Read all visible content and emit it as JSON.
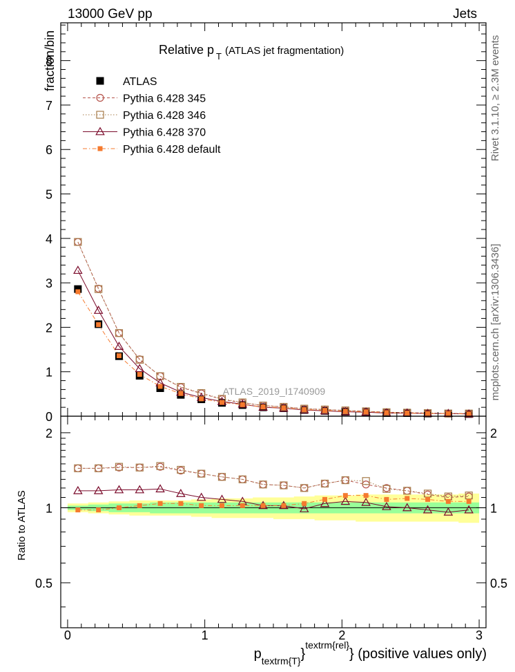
{
  "header": {
    "left": "13000 GeV pp",
    "right": "Jets"
  },
  "side_labels": {
    "rivet": "Rivet 3.1.10, ≥ 2.3M events",
    "mcplots": "mcplots.cern.ch [arXiv:1306.3436]"
  },
  "chart_data": {
    "type": "scatter",
    "title_main": "Relative p",
    "title_sub": "T",
    "title_rest": "(ATLAS jet fragmentation)",
    "watermark": "ATLAS_2019_I1740909",
    "ylabel": "fraction/bin",
    "ratio_ylabel": "Ratio to ATLAS",
    "xlabel_main": "p",
    "xlabel_sub": "textrm{T}",
    "xlabel_sup": "textrm{rel}",
    "xlabel_tail": "} (positive values only)",
    "xlim": [
      -0.05,
      3.05
    ],
    "ylim": [
      0,
      8.85
    ],
    "ratio_ylim": [
      0.33,
      2.33
    ],
    "x_ticks": [
      "0",
      "1",
      "2",
      "3"
    ],
    "y_ticks": [
      "0",
      "1",
      "2",
      "3",
      "4",
      "5",
      "6",
      "7",
      "8"
    ],
    "ratio_ticks": [
      "0.5",
      "1",
      "2"
    ],
    "x": [
      0.075,
      0.225,
      0.375,
      0.525,
      0.675,
      0.825,
      0.975,
      1.125,
      1.275,
      1.425,
      1.575,
      1.725,
      1.875,
      2.025,
      2.175,
      2.325,
      2.475,
      2.625,
      2.775,
      2.925
    ],
    "legend_position": "top-left",
    "series": [
      {
        "name": "ATLAS",
        "color": "#000000",
        "marker": "filled-square",
        "line": "none",
        "values": [
          2.86,
          2.07,
          1.35,
          0.91,
          0.63,
          0.48,
          0.38,
          0.3,
          0.25,
          0.2,
          0.18,
          0.14,
          0.12,
          0.1,
          0.09,
          0.07,
          0.07,
          0.06,
          0.06,
          0.05
        ]
      },
      {
        "name": "Pythia 6.428 345",
        "color": "#b5524a",
        "marker": "open-circle",
        "line": "dashed",
        "values": [
          3.92,
          2.87,
          1.87,
          1.28,
          0.9,
          0.65,
          0.51,
          0.38,
          0.3,
          0.24,
          0.21,
          0.17,
          0.15,
          0.13,
          0.11,
          0.09,
          0.08,
          0.07,
          0.06,
          0.06
        ],
        "ratio": [
          1.44,
          1.44,
          1.45,
          1.45,
          1.46,
          1.41,
          1.37,
          1.33,
          1.3,
          1.24,
          1.23,
          1.2,
          1.25,
          1.29,
          1.24,
          1.2,
          1.17,
          1.13,
          1.1,
          1.11
        ]
      },
      {
        "name": "Pythia 6.428 346",
        "color": "#a67c4a",
        "marker": "open-square",
        "line": "dotted",
        "values": [
          3.92,
          2.86,
          1.87,
          1.27,
          0.9,
          0.66,
          0.52,
          0.39,
          0.31,
          0.24,
          0.21,
          0.17,
          0.15,
          0.13,
          0.11,
          0.09,
          0.08,
          0.07,
          0.06,
          0.06
        ],
        "ratio": [
          1.44,
          1.44,
          1.46,
          1.45,
          1.47,
          1.42,
          1.37,
          1.33,
          1.3,
          1.24,
          1.23,
          1.2,
          1.25,
          1.29,
          1.28,
          1.19,
          1.17,
          1.14,
          1.11,
          1.12
        ]
      },
      {
        "name": "Pythia 6.428 370",
        "color": "#7a0a2a",
        "marker": "open-triangle",
        "line": "solid",
        "values": [
          3.28,
          2.38,
          1.57,
          1.07,
          0.75,
          0.54,
          0.42,
          0.33,
          0.27,
          0.2,
          0.18,
          0.14,
          0.12,
          0.1,
          0.09,
          0.07,
          0.07,
          0.06,
          0.06,
          0.05
        ],
        "ratio": [
          1.17,
          1.17,
          1.18,
          1.18,
          1.19,
          1.14,
          1.1,
          1.08,
          1.06,
          1.02,
          1.02,
          0.99,
          1.04,
          1.06,
          1.05,
          1.01,
          1.0,
          0.98,
          0.96,
          0.98
        ]
      },
      {
        "name": "Pythia 6.428 default",
        "color": "#f57a2e",
        "marker": "filled-square",
        "line": "dashdot",
        "values": [
          2.8,
          2.06,
          1.36,
          0.94,
          0.67,
          0.51,
          0.39,
          0.31,
          0.26,
          0.21,
          0.19,
          0.15,
          0.13,
          0.11,
          0.1,
          0.08,
          0.07,
          0.06,
          0.06,
          0.05
        ],
        "ratio": [
          0.98,
          0.98,
          1.0,
          1.02,
          1.04,
          1.04,
          1.02,
          1.02,
          1.02,
          1.02,
          1.02,
          1.04,
          1.08,
          1.12,
          1.12,
          1.08,
          1.09,
          1.08,
          1.06,
          1.06
        ]
      }
    ],
    "ratio_band_yellow_lo": [
      0.96,
      0.95,
      0.94,
      0.93,
      0.93,
      0.93,
      0.92,
      0.91,
      0.91,
      0.91,
      0.9,
      0.9,
      0.89,
      0.89,
      0.88,
      0.88,
      0.88,
      0.88,
      0.88,
      0.87
    ],
    "ratio_band_yellow_hi": [
      1.04,
      1.05,
      1.06,
      1.07,
      1.07,
      1.07,
      1.08,
      1.09,
      1.09,
      1.1,
      1.1,
      1.11,
      1.12,
      1.12,
      1.13,
      1.13,
      1.13,
      1.13,
      1.13,
      1.14
    ],
    "ratio_band_green_lo": [
      0.98,
      0.97,
      0.96,
      0.96,
      0.95,
      0.95,
      0.95,
      0.95,
      0.95,
      0.95,
      0.95,
      0.95,
      0.95,
      0.95,
      0.95,
      0.95,
      0.95,
      0.95,
      0.95,
      0.95
    ],
    "ratio_band_green_hi": [
      1.02,
      1.03,
      1.04,
      1.04,
      1.05,
      1.05,
      1.05,
      1.05,
      1.05,
      1.05,
      1.05,
      1.05,
      1.05,
      1.05,
      1.05,
      1.05,
      1.05,
      1.05,
      1.05,
      1.05
    ],
    "band_colors": {
      "yellow": "#ffff99",
      "green": "#99ff99"
    }
  }
}
